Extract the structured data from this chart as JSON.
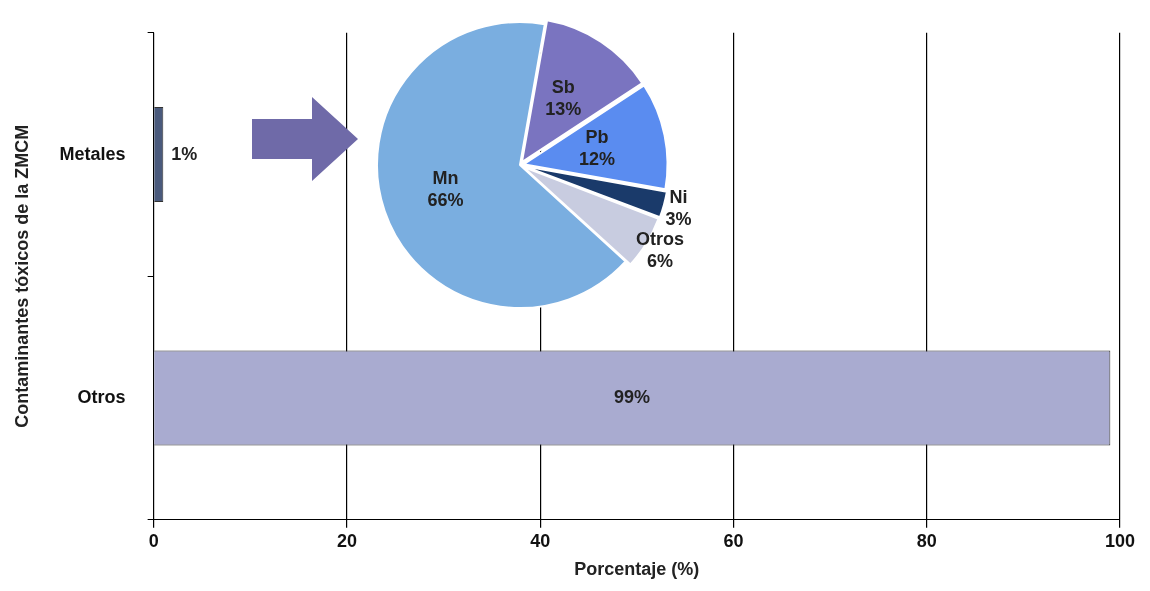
{
  "chart_data": [
    {
      "type": "bar",
      "orientation": "horizontal",
      "categories": [
        "Metales",
        "Otros"
      ],
      "values": [
        1,
        99
      ],
      "colors": [
        "#4a5a7c",
        "#a9abd0"
      ],
      "value_labels": [
        "1%",
        "99%"
      ],
      "xlim": [
        0,
        100
      ],
      "xticks": [
        0,
        20,
        40,
        60,
        80,
        100
      ],
      "grid": "x",
      "legend": false,
      "xlabel": "Porcentaje (%)",
      "ylabel": "Contaminantes tóxicos de la ZMCM"
    },
    {
      "type": "pie",
      "categories": [
        "Sb",
        "Pb",
        "Ni",
        "Otros",
        "Mn"
      ],
      "values": [
        13,
        12,
        3,
        6,
        66
      ],
      "colors": [
        "#7a74c0",
        "#5a8cf0",
        "#1a3a6a",
        "#c8cce0",
        "#7aaee0"
      ],
      "value_labels": [
        "13%",
        "12%",
        "3%",
        "6%",
        "66%"
      ],
      "legend": false
    }
  ]
}
